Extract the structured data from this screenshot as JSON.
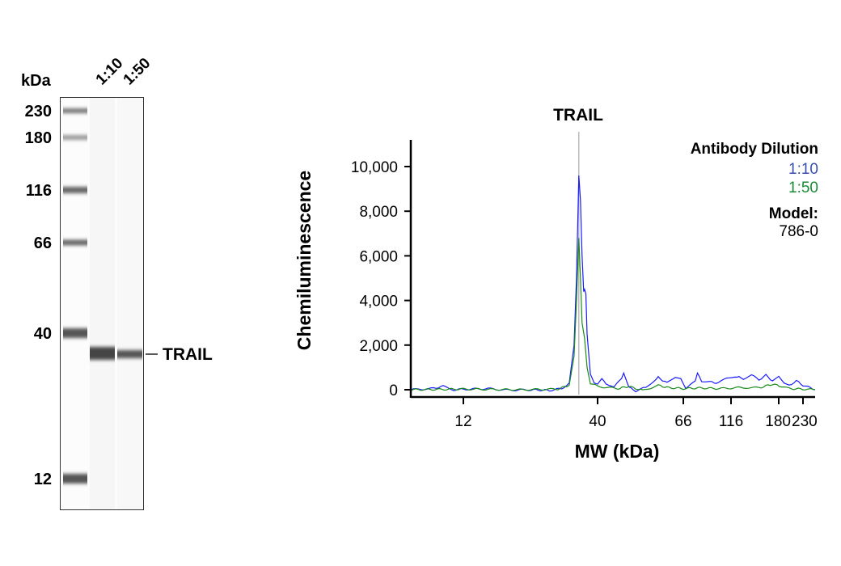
{
  "blot": {
    "unit_label": "kDa",
    "lanes": [
      "1:10",
      "1:50"
    ],
    "markers": [
      "230",
      "180",
      "116",
      "66",
      "40",
      "12"
    ],
    "band_label": "TRAIL"
  },
  "chart_data": {
    "type": "line",
    "title": "TRAIL",
    "xlabel": "MW (kDa)",
    "ylabel": "Chemiluminescence",
    "x_scale": "log (by marker ticks)",
    "x_ticks": [
      "12",
      "40",
      "66",
      "116",
      "180",
      "230"
    ],
    "y_ticks": [
      "0",
      "2,000",
      "4,000",
      "6,000",
      "8,000",
      "10,000"
    ],
    "ylim": [
      0,
      11000
    ],
    "xlim": [
      7.5,
      260
    ],
    "grid": false,
    "reference_line_kDa": 33.8,
    "legend": {
      "position": "top-right",
      "title": "Antibody Dilution",
      "model_label": "Model:",
      "model_value": "786-0"
    },
    "series": [
      {
        "name": "1:10",
        "color": "#1a1aff",
        "label_color": "#3a4fb0",
        "points": [
          [
            7.5,
            0
          ],
          [
            9,
            50
          ],
          [
            10,
            150
          ],
          [
            11,
            0
          ],
          [
            12,
            20
          ],
          [
            15,
            50
          ],
          [
            18,
            -20
          ],
          [
            22,
            0
          ],
          [
            26,
            -30
          ],
          [
            29,
            50
          ],
          [
            31,
            300
          ],
          [
            32.4,
            2000
          ],
          [
            33.1,
            5000
          ],
          [
            33.8,
            9600
          ],
          [
            34.3,
            8500
          ],
          [
            34.8,
            6000
          ],
          [
            35.3,
            4400
          ],
          [
            35.6,
            4500
          ],
          [
            36.0,
            4300
          ],
          [
            36.4,
            2500
          ],
          [
            37.5,
            700
          ],
          [
            38.8,
            300
          ],
          [
            40,
            250
          ],
          [
            41,
            500
          ],
          [
            42,
            300
          ],
          [
            44,
            100
          ],
          [
            46,
            500
          ],
          [
            46.6,
            750
          ],
          [
            48,
            100
          ],
          [
            50,
            -50
          ],
          [
            53,
            100
          ],
          [
            55,
            300
          ],
          [
            57,
            550
          ],
          [
            60,
            300
          ],
          [
            63,
            550
          ],
          [
            65,
            500
          ],
          [
            68,
            50
          ],
          [
            72,
            250
          ],
          [
            76,
            400
          ],
          [
            78,
            750
          ],
          [
            82,
            400
          ],
          [
            90,
            350
          ],
          [
            100,
            300
          ],
          [
            110,
            500
          ],
          [
            120,
            600
          ],
          [
            130,
            500
          ],
          [
            140,
            650
          ],
          [
            150,
            450
          ],
          [
            160,
            650
          ],
          [
            170,
            400
          ],
          [
            180,
            600
          ],
          [
            190,
            300
          ],
          [
            200,
            200
          ],
          [
            215,
            400
          ],
          [
            230,
            200
          ],
          [
            260,
            0
          ]
        ]
      },
      {
        "name": "1:50",
        "color": "#1a8a1a",
        "label_color": "#1a8a3a",
        "points": [
          [
            7.5,
            0
          ],
          [
            12,
            30
          ],
          [
            20,
            0
          ],
          [
            28,
            30
          ],
          [
            31,
            200
          ],
          [
            32.4,
            1500
          ],
          [
            33.1,
            4000
          ],
          [
            33.8,
            6800
          ],
          [
            34.3,
            5000
          ],
          [
            34.8,
            3000
          ],
          [
            35.6,
            2300
          ],
          [
            36.4,
            1000
          ],
          [
            37.5,
            300
          ],
          [
            40,
            150
          ],
          [
            45,
            50
          ],
          [
            48,
            150
          ],
          [
            52,
            -30
          ],
          [
            57,
            200
          ],
          [
            60,
            100
          ],
          [
            66,
            50
          ],
          [
            80,
            80
          ],
          [
            100,
            50
          ],
          [
            130,
            100
          ],
          [
            150,
            80
          ],
          [
            170,
            250
          ],
          [
            185,
            150
          ],
          [
            200,
            50
          ],
          [
            230,
            30
          ],
          [
            260,
            0
          ]
        ]
      }
    ]
  }
}
